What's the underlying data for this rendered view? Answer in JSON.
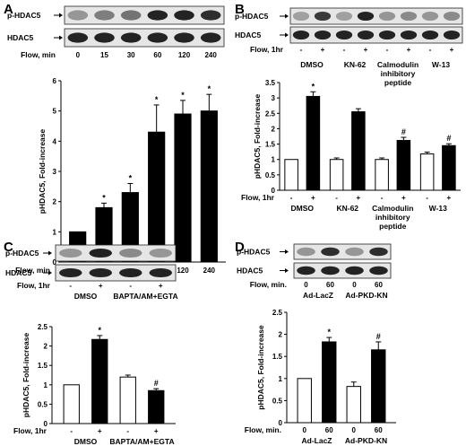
{
  "panels": [
    {
      "letter": "A",
      "blot_labels": [
        "p-HDAC5",
        "HDAC5"
      ],
      "blot_row_label": "Flow, min",
      "blot_lanes": [
        "0",
        "15",
        "30",
        "60",
        "120",
        "240"
      ],
      "chart_data": {
        "type": "bar",
        "ylabel": "pHDAC5, Fold-increase",
        "xlabel": "Flow, min",
        "ylim": [
          0,
          6
        ],
        "yticks": [
          0,
          1,
          2,
          3,
          4,
          5,
          6
        ],
        "categories": [
          "0",
          "15",
          "30",
          "60",
          "120",
          "240"
        ],
        "values": [
          1.0,
          1.8,
          2.3,
          4.3,
          4.9,
          5.0
        ],
        "errors": [
          0.0,
          0.15,
          0.3,
          0.9,
          0.45,
          0.55
        ],
        "fills": [
          "#000000",
          "#000000",
          "#000000",
          "#000000",
          "#000000",
          "#000000"
        ],
        "markers": [
          "",
          "*",
          "*",
          "*",
          "*",
          "*"
        ]
      }
    },
    {
      "letter": "B",
      "blot_labels": [
        "p-HDAC5",
        "HDAC5"
      ],
      "blot_row_label": "Flow, 1hr",
      "blot_lanes": [
        "-",
        "+",
        "-",
        "+",
        "-",
        "+",
        "-",
        "+"
      ],
      "blot_groups": [
        "DMSO",
        "KN-62",
        "Calmodulin inhibitory peptide",
        "W-13"
      ],
      "chart_data": {
        "type": "bar",
        "ylabel": "pHDAC5, Fold-increase",
        "xlabel": "Flow, 1hr",
        "ylim": [
          0,
          3.5
        ],
        "yticks": [
          0,
          0.5,
          1,
          1.5,
          2,
          2.5,
          3,
          3.5
        ],
        "categories": [
          "-",
          "+",
          "-",
          "+",
          "-",
          "+",
          "-",
          "+"
        ],
        "groups": [
          "DMSO",
          "KN-62",
          "Calmodulin inhibitory peptide",
          "W-13"
        ],
        "values": [
          1.0,
          3.05,
          1.0,
          2.55,
          1.0,
          1.62,
          1.18,
          1.45
        ],
        "errors": [
          0.0,
          0.15,
          0.05,
          0.1,
          0.05,
          0.1,
          0.06,
          0.06
        ],
        "fills": [
          "#ffffff",
          "#000000",
          "#ffffff",
          "#000000",
          "#ffffff",
          "#000000",
          "#ffffff",
          "#000000"
        ],
        "markers": [
          "",
          "*",
          "",
          "",
          "",
          "#",
          "",
          "#"
        ]
      }
    },
    {
      "letter": "C",
      "blot_labels": [
        "p-HDAC5",
        "HDAC5"
      ],
      "blot_row_label": "Flow, 1hr",
      "blot_lanes": [
        "-",
        "+",
        "-",
        "+"
      ],
      "blot_groups": [
        "DMSO",
        "BAPTA/AM+EGTA"
      ],
      "chart_data": {
        "type": "bar",
        "ylabel": "pHDAC5, Fold-increase",
        "xlabel": "Flow, 1hr",
        "ylim": [
          0,
          2.5
        ],
        "yticks": [
          0,
          0.5,
          1,
          1.5,
          2,
          2.5
        ],
        "categories": [
          "-",
          "+",
          "-",
          "+"
        ],
        "groups": [
          "DMSO",
          "BAPTA/AM+EGTA"
        ],
        "values": [
          1.0,
          2.17,
          1.2,
          0.85
        ],
        "errors": [
          0.0,
          0.1,
          0.05,
          0.05
        ],
        "fills": [
          "#ffffff",
          "#000000",
          "#ffffff",
          "#000000"
        ],
        "markers": [
          "",
          "*",
          "",
          "#"
        ]
      }
    },
    {
      "letter": "D",
      "blot_labels": [
        "p-HDAC5",
        "HDAC5"
      ],
      "blot_row_label": "Flow, min.",
      "blot_lanes": [
        "0",
        "60",
        "0",
        "60"
      ],
      "blot_groups": [
        "Ad-LacZ",
        "Ad-PKD-KN"
      ],
      "chart_data": {
        "type": "bar",
        "ylabel": "pHDAC5, Fold-increase",
        "xlabel": "Flow, min.",
        "ylim": [
          0,
          2.5
        ],
        "yticks": [
          0,
          0.5,
          1,
          1.5,
          2,
          2.5
        ],
        "categories": [
          "0",
          "60",
          "0",
          "60"
        ],
        "groups": [
          "Ad-LacZ",
          "Ad-PKD-KN"
        ],
        "values": [
          1.0,
          1.83,
          0.82,
          1.65
        ],
        "errors": [
          0.0,
          0.1,
          0.1,
          0.18
        ],
        "fills": [
          "#ffffff",
          "#000000",
          "#ffffff",
          "#000000"
        ],
        "markers": [
          "",
          "*",
          "",
          "#"
        ]
      }
    }
  ]
}
